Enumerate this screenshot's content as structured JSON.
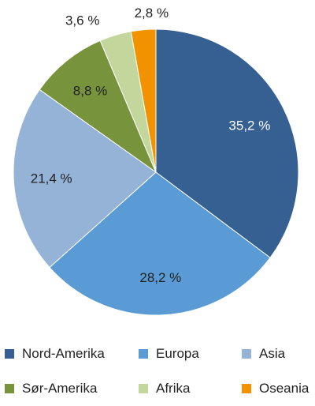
{
  "chart_data": {
    "type": "pie",
    "title": "",
    "start_angle_deg": 0,
    "direction": "clockwise",
    "legend_position": "bottom",
    "slices": [
      {
        "name": "Nord-Amerika",
        "value": 35.2,
        "label": "35,2 %",
        "color": "#366092"
      },
      {
        "name": "Europa",
        "value": 28.2,
        "label": "28,2 %",
        "color": "#5a9bd5"
      },
      {
        "name": "Asia",
        "value": 21.4,
        "label": "21,4 %",
        "color": "#95b3d7"
      },
      {
        "name": "Sør-Amerika",
        "value": 8.8,
        "label": "8,8 %",
        "color": "#77933c"
      },
      {
        "name": "Afrika",
        "value": 3.6,
        "label": "3,6 %",
        "color": "#c3d69b"
      },
      {
        "name": "Oseania",
        "value": 2.8,
        "label": "2,8 %",
        "color": "#f39200"
      }
    ]
  }
}
